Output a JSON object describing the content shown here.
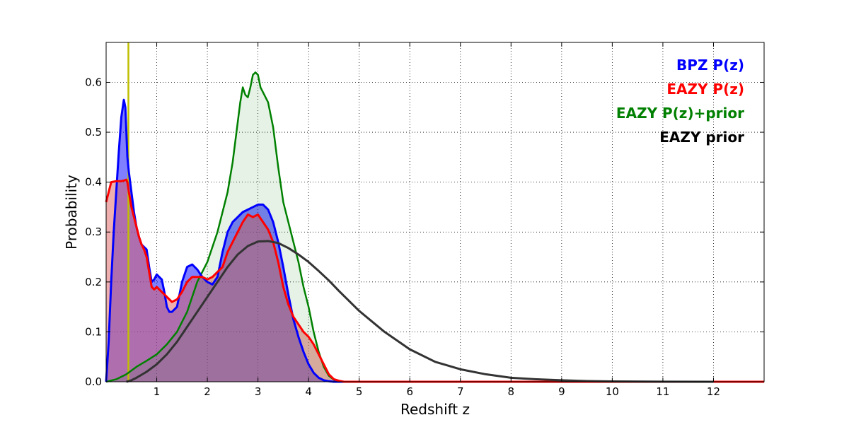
{
  "chart_data": {
    "type": "area",
    "xlabel": "Redshift z",
    "ylabel": "Probability",
    "xlim": [
      0,
      13
    ],
    "ylim": [
      0,
      0.68
    ],
    "grid": true,
    "legend_placement": "top-right",
    "x_ticks": [
      1,
      2,
      3,
      4,
      5,
      6,
      7,
      8,
      9,
      10,
      11,
      12
    ],
    "x_tick_labels": [
      "1",
      "2",
      "3",
      "4",
      "5",
      "6",
      "7",
      "8",
      "9",
      "10",
      "11",
      "12"
    ],
    "y_ticks": [
      0.0,
      0.1,
      0.2,
      0.3,
      0.4,
      0.5,
      0.6
    ],
    "y_tick_labels": [
      "0.0",
      "0.1",
      "0.2",
      "0.3",
      "0.4",
      "0.5",
      "0.6"
    ],
    "vertical_line": {
      "x": 0.44,
      "color": "#bfbf00"
    },
    "series": [
      {
        "name": "BPZ P(z)",
        "color": "#0000ff",
        "fill": "#0000ff",
        "fill_opacity": 0.5,
        "line_width": 3,
        "x": [
          0,
          0.05,
          0.1,
          0.15,
          0.2,
          0.25,
          0.3,
          0.35,
          0.38,
          0.4,
          0.42,
          0.45,
          0.5,
          0.55,
          0.6,
          0.65,
          0.7,
          0.75,
          0.8,
          0.85,
          0.9,
          0.95,
          1.0,
          1.05,
          1.1,
          1.15,
          1.2,
          1.25,
          1.3,
          1.4,
          1.5,
          1.6,
          1.7,
          1.8,
          1.9,
          2.0,
          2.1,
          2.2,
          2.3,
          2.4,
          2.5,
          2.6,
          2.7,
          2.8,
          2.9,
          3.0,
          3.1,
          3.2,
          3.3,
          3.4,
          3.5,
          3.6,
          3.7,
          3.8,
          3.9,
          4.0,
          4.1,
          4.2,
          4.3,
          4.4,
          4.5,
          4.6,
          4.7,
          5.0,
          13.0
        ],
        "y": [
          0.0,
          0.08,
          0.2,
          0.3,
          0.38,
          0.46,
          0.53,
          0.565,
          0.55,
          0.5,
          0.45,
          0.42,
          0.38,
          0.34,
          0.31,
          0.29,
          0.275,
          0.27,
          0.265,
          0.23,
          0.2,
          0.205,
          0.215,
          0.21,
          0.205,
          0.18,
          0.15,
          0.14,
          0.14,
          0.15,
          0.2,
          0.23,
          0.235,
          0.225,
          0.21,
          0.2,
          0.195,
          0.21,
          0.26,
          0.3,
          0.32,
          0.33,
          0.34,
          0.345,
          0.35,
          0.355,
          0.355,
          0.345,
          0.32,
          0.28,
          0.23,
          0.175,
          0.125,
          0.09,
          0.06,
          0.035,
          0.018,
          0.008,
          0.003,
          0.001,
          0.0,
          0.0,
          0.0,
          0.0,
          0.0
        ]
      },
      {
        "name": "EAZY P(z)",
        "color": "#ff0000",
        "fill": "#e06060",
        "fill_opacity": 0.5,
        "line_width": 3,
        "x": [
          0,
          0.05,
          0.1,
          0.2,
          0.3,
          0.35,
          0.4,
          0.42,
          0.45,
          0.5,
          0.55,
          0.6,
          0.65,
          0.7,
          0.75,
          0.8,
          0.85,
          0.9,
          0.95,
          1.0,
          1.1,
          1.2,
          1.3,
          1.4,
          1.5,
          1.6,
          1.7,
          1.8,
          1.9,
          2.0,
          2.1,
          2.2,
          2.3,
          2.4,
          2.5,
          2.6,
          2.7,
          2.8,
          2.9,
          3.0,
          3.1,
          3.2,
          3.3,
          3.4,
          3.5,
          3.6,
          3.7,
          3.8,
          3.9,
          4.0,
          4.1,
          4.2,
          4.3,
          4.4,
          4.5,
          4.6,
          4.7,
          4.8,
          5.0,
          13.0
        ],
        "y": [
          0.36,
          0.38,
          0.4,
          0.402,
          0.402,
          0.403,
          0.405,
          0.4,
          0.38,
          0.35,
          0.33,
          0.31,
          0.29,
          0.275,
          0.265,
          0.25,
          0.22,
          0.19,
          0.185,
          0.19,
          0.18,
          0.17,
          0.16,
          0.165,
          0.18,
          0.2,
          0.21,
          0.21,
          0.21,
          0.205,
          0.21,
          0.22,
          0.23,
          0.26,
          0.28,
          0.3,
          0.32,
          0.335,
          0.33,
          0.335,
          0.32,
          0.305,
          0.28,
          0.24,
          0.19,
          0.155,
          0.13,
          0.115,
          0.1,
          0.09,
          0.075,
          0.055,
          0.035,
          0.015,
          0.005,
          0.002,
          0.0,
          0.0,
          0.0,
          0.0
        ]
      },
      {
        "name": "EAZY P(z)+prior",
        "color": "#008000",
        "fill": "#008000",
        "fill_opacity": 0.1,
        "line_width": 2.5,
        "x": [
          0,
          0.2,
          0.4,
          0.6,
          0.8,
          1.0,
          1.2,
          1.4,
          1.6,
          1.8,
          2.0,
          2.2,
          2.4,
          2.5,
          2.6,
          2.65,
          2.7,
          2.75,
          2.8,
          2.85,
          2.9,
          2.95,
          3.0,
          3.05,
          3.1,
          3.2,
          3.3,
          3.4,
          3.5,
          3.6,
          3.7,
          3.8,
          3.9,
          4.0,
          4.1,
          4.2,
          4.3,
          4.4,
          4.5,
          4.6,
          4.7,
          5.0,
          13.0
        ],
        "y": [
          0.0,
          0.005,
          0.015,
          0.03,
          0.042,
          0.055,
          0.075,
          0.1,
          0.14,
          0.2,
          0.24,
          0.3,
          0.38,
          0.44,
          0.52,
          0.56,
          0.59,
          0.575,
          0.57,
          0.59,
          0.615,
          0.62,
          0.615,
          0.59,
          0.58,
          0.56,
          0.51,
          0.43,
          0.36,
          0.32,
          0.28,
          0.24,
          0.19,
          0.15,
          0.1,
          0.06,
          0.03,
          0.012,
          0.004,
          0.001,
          0.0,
          0.0,
          0.0
        ]
      },
      {
        "name": "EAZY prior",
        "color": "#333333",
        "fill": "none",
        "fill_opacity": 0,
        "line_width": 3,
        "x": [
          0.4,
          0.5,
          0.6,
          0.8,
          1.0,
          1.2,
          1.4,
          1.6,
          1.8,
          2.0,
          2.2,
          2.4,
          2.6,
          2.8,
          3.0,
          3.2,
          3.4,
          3.6,
          3.8,
          4.0,
          4.2,
          4.4,
          4.6,
          4.8,
          5.0,
          5.5,
          6.0,
          6.5,
          7.0,
          7.5,
          8.0,
          8.5,
          9.0,
          9.5,
          10.0,
          11.0,
          12.0
        ],
        "y": [
          0.0,
          0.003,
          0.008,
          0.02,
          0.035,
          0.055,
          0.08,
          0.11,
          0.14,
          0.17,
          0.2,
          0.23,
          0.255,
          0.272,
          0.281,
          0.282,
          0.278,
          0.268,
          0.255,
          0.24,
          0.222,
          0.203,
          0.182,
          0.162,
          0.142,
          0.1,
          0.065,
          0.04,
          0.025,
          0.015,
          0.008,
          0.005,
          0.003,
          0.0015,
          0.0008,
          0.0002,
          0.0
        ]
      }
    ]
  }
}
